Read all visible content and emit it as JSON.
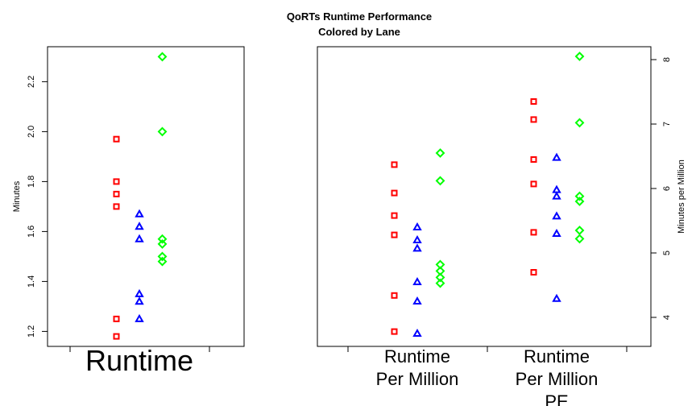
{
  "title_line1": "QoRTs Runtime Performance",
  "title_line2": "Colored by Lane",
  "chart_data": [
    {
      "type": "scatter",
      "ylabel": "Minutes",
      "ylim": [
        1.14,
        2.34
      ],
      "yticks": [
        "1.2",
        "1.4",
        "1.6",
        "1.8",
        "2.0",
        "2.2"
      ],
      "categories": [
        "Runtime"
      ],
      "category_label_lines": [
        [
          "Runtime"
        ]
      ],
      "series": [
        {
          "color": "#ff0000",
          "marker": "square",
          "values": [
            [
              1.97,
              1.8,
              1.75,
              1.7,
              1.25,
              1.18
            ]
          ]
        },
        {
          "color": "#0000ff",
          "marker": "triangle",
          "values": [
            [
              1.67,
              1.62,
              1.57,
              1.35,
              1.32,
              1.25
            ]
          ]
        },
        {
          "color": "#00ff00",
          "marker": "diamond",
          "values": [
            [
              2.3,
              2.0,
              1.57,
              1.55,
              1.5,
              1.48
            ]
          ]
        }
      ]
    },
    {
      "type": "scatter",
      "ylabel": "Minutes per Million",
      "yaxis_side": "right",
      "ylim": [
        3.55,
        8.2
      ],
      "yticks": [
        "4",
        "5",
        "6",
        "7",
        "8"
      ],
      "categories": [
        "Runtime Per Million",
        "Runtime Per Million PE"
      ],
      "category_label_lines": [
        [
          "Runtime",
          "Per Million"
        ],
        [
          "Runtime",
          "Per Million",
          "PE"
        ]
      ],
      "series": [
        {
          "color": "#ff0000",
          "marker": "square",
          "values": [
            [
              6.37,
              5.93,
              5.58,
              5.28,
              4.34,
              3.78
            ],
            [
              7.35,
              7.07,
              6.45,
              6.07,
              5.32,
              4.7
            ]
          ]
        },
        {
          "color": "#0000ff",
          "marker": "triangle",
          "values": [
            [
              5.4,
              5.2,
              5.07,
              4.55,
              4.25,
              3.75
            ],
            [
              6.48,
              5.98,
              5.88,
              5.57,
              5.3,
              4.29
            ]
          ]
        },
        {
          "color": "#00ff00",
          "marker": "diamond",
          "values": [
            [
              6.55,
              6.12,
              4.82,
              4.72,
              4.62,
              4.53
            ],
            [
              8.05,
              7.02,
              5.88,
              5.8,
              5.35,
              5.22
            ]
          ]
        }
      ]
    }
  ]
}
